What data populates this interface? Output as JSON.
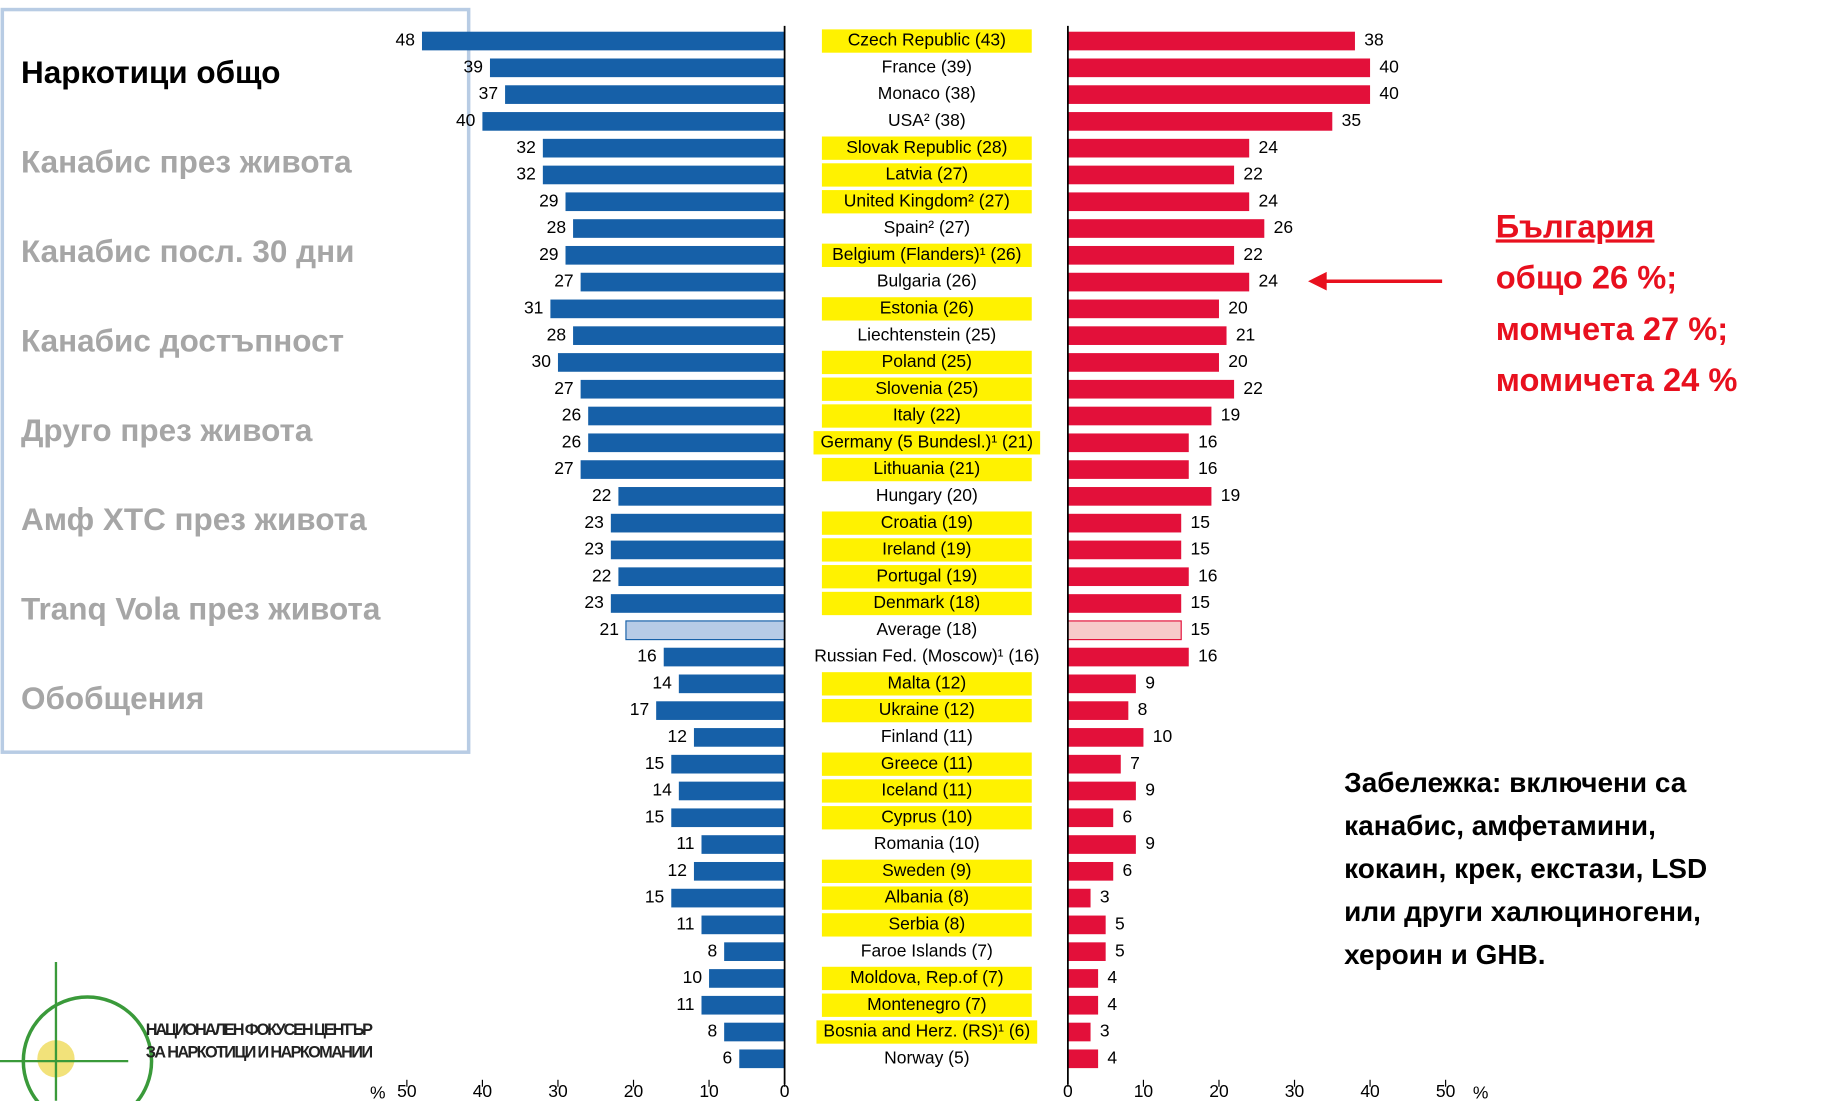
{
  "menu": [
    "Наркотици общо",
    "Канабис през живота",
    "Канабис посл. 30 дни",
    "Канабис достъпност",
    "Друго през живота",
    "Амф ХТС през живота",
    "Tranq Vola през живота",
    "Обобщения"
  ],
  "annotation": [
    "България",
    "общо 26 %;",
    "момчета 27 %;",
    "момичета 24 %"
  ],
  "note": [
    "Забележка: включени са",
    "канабис, амфетамини,",
    "кокаин, крек, екстази, LSD",
    "или други халюциногени,",
    "хероин и GHB."
  ],
  "logo": [
    "НАЦИОНАЛЕН ФОКУСЕН ЦЕНТЪР",
    "ЗА НАРКОТИЦИ И НАРКОМАНИИ"
  ],
  "chart_data": {
    "type": "butterfly",
    "categories": [
      "Czech Republic (43)",
      "France (39)",
      "Monaco (38)",
      "USA² (38)",
      "Slovak Republic (28)",
      "Latvia (27)",
      "United Kingdom² (27)",
      "Spain² (27)",
      "Belgium (Flanders)¹ (26)",
      "Bulgaria (26)",
      "Estonia (26)",
      "Liechtenstein (25)",
      "Poland (25)",
      "Slovenia (25)",
      "Italy (22)",
      "Germany (5 Bundesl.)¹ (21)",
      "Lithuania (21)",
      "Hungary (20)",
      "Croatia (19)",
      "Ireland (19)",
      "Portugal (19)",
      "Denmark (18)",
      "Average (18)",
      "Russian Fed. (Moscow)¹ (16)",
      "Malta (12)",
      "Ukraine (12)",
      "Finland (11)",
      "Greece (11)",
      "Iceland (11)",
      "Cyprus (10)",
      "Romania (10)",
      "Sweden (9)",
      "Albania (8)",
      "Serbia (8)",
      "Faroe Islands (7)",
      "Moldova, Rep.of (7)",
      "Montenegro (7)",
      "Bosnia and Herz. (RS)¹ (6)",
      "Norway (5)"
    ],
    "category_colors": [
      "#fff200",
      null,
      null,
      null,
      "#fff200",
      "#fff200",
      "#fff200",
      null,
      "#fff200",
      null,
      "#fff200",
      null,
      "#fff200",
      "#fff200",
      "#fff200",
      "#fff200",
      "#fff200",
      null,
      "#fff200",
      "#fff200",
      "#fff200",
      "#fff200",
      null,
      null,
      "#fff200",
      "#fff200",
      null,
      "#fff200",
      "#fff200",
      "#fff200",
      null,
      "#fff200",
      "#fff200",
      "#fff200",
      null,
      "#fff200",
      "#fff200",
      "#fff200",
      null
    ],
    "series": [
      {
        "side": "left",
        "values": [
          48,
          39,
          37,
          40,
          32,
          32,
          29,
          28,
          29,
          27,
          31,
          28,
          30,
          27,
          26,
          26,
          27,
          22,
          23,
          23,
          22,
          23,
          21,
          16,
          14,
          17,
          12,
          15,
          14,
          15,
          11,
          12,
          15,
          11,
          8,
          10,
          11,
          8,
          6
        ],
        "colors": [
          "#1660a8",
          "#1660a8",
          "#1660a8",
          "#1660a8",
          "#1660a8",
          "#1660a8",
          "#1660a8",
          "#1660a8",
          "#1660a8",
          "#1660a8",
          "#1660a8",
          "#1660a8",
          "#1660a8",
          "#1660a8",
          "#1660a8",
          "#1660a8",
          "#1660a8",
          "#1660a8",
          "#1660a8",
          "#1660a8",
          "#1660a8",
          "#1660a8",
          "#b7cbe6",
          "#1660a8",
          "#1660a8",
          "#1660a8",
          "#1660a8",
          "#1660a8",
          "#1660a8",
          "#1660a8",
          "#1660a8",
          "#1660a8",
          "#1660a8",
          "#1660a8",
          "#1660a8",
          "#1660a8",
          "#1660a8",
          "#1660a8",
          "#1660a8"
        ]
      },
      {
        "side": "right",
        "values": [
          38,
          40,
          40,
          35,
          24,
          22,
          24,
          26,
          22,
          24,
          20,
          21,
          20,
          22,
          19,
          16,
          16,
          19,
          15,
          15,
          16,
          15,
          15,
          16,
          9,
          8,
          10,
          7,
          9,
          6,
          9,
          6,
          3,
          5,
          5,
          4,
          4,
          3,
          4
        ],
        "colors": [
          "#e3103a",
          "#e3103a",
          "#e3103a",
          "#e3103a",
          "#e3103a",
          "#e3103a",
          "#e3103a",
          "#e3103a",
          "#e3103a",
          "#e3103a",
          "#e3103a",
          "#e3103a",
          "#e3103a",
          "#e3103a",
          "#e3103a",
          "#e3103a",
          "#e3103a",
          "#e3103a",
          "#e3103a",
          "#e3103a",
          "#e3103a",
          "#e3103a",
          "#f7c9c9",
          "#e3103a",
          "#e3103a",
          "#e3103a",
          "#e3103a",
          "#e3103a",
          "#e3103a",
          "#e3103a",
          "#e3103a",
          "#e3103a",
          "#e3103a",
          "#e3103a",
          "#e3103a",
          "#e3103a",
          "#e3103a",
          "#e3103a",
          "#e3103a"
        ]
      }
    ],
    "xlim": [
      0,
      50
    ],
    "xticks": [
      0,
      10,
      20,
      30,
      40,
      50
    ],
    "x_label": "%"
  }
}
